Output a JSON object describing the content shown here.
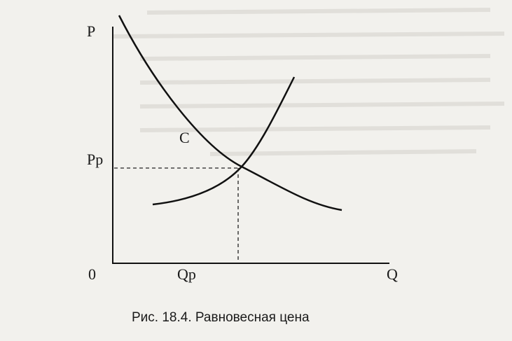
{
  "axes": {
    "y_label": "P",
    "x_label": "Q",
    "origin": "0"
  },
  "labels": {
    "price": "Pp",
    "quantity": "Qp",
    "curve": "C"
  },
  "caption": "Рис. 18.4. Равновесная цена"
}
